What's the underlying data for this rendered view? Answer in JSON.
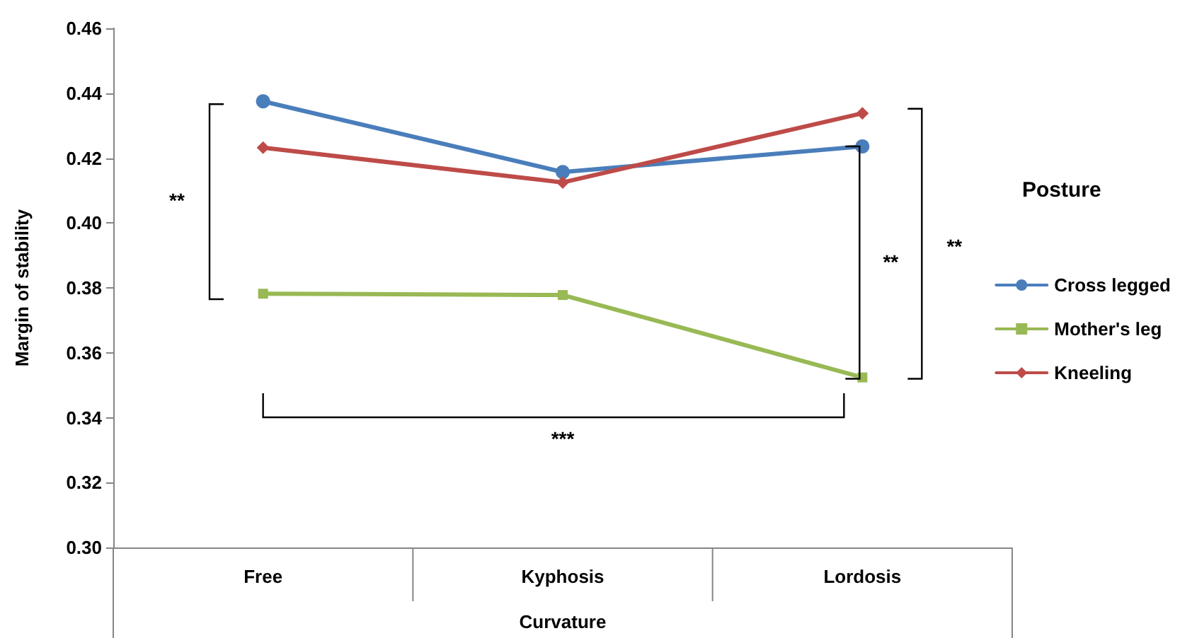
{
  "chart_data": {
    "type": "line",
    "xlabel": "Curvature",
    "ylabel": "Margin of stability",
    "legend_title": "Posture",
    "legend": "right",
    "grid": false,
    "categories": [
      "Free",
      "Kyphosis",
      "Lordosis"
    ],
    "ylim": [
      0.3,
      0.46
    ],
    "yticks": [
      {
        "value": 0.3,
        "label": "0.30"
      },
      0.32,
      0.34,
      0.36,
      0.38,
      {
        "value": 0.4,
        "label": "0.40"
      },
      0.42,
      0.44,
      0.46
    ],
    "series": [
      {
        "name": "Cross legged",
        "color": "#4a7ebb",
        "marker": "circle",
        "values": [
          0.4375,
          0.4157,
          0.4236
        ]
      },
      {
        "name": "Mother's leg",
        "color": "#98b954",
        "marker": "square",
        "values": [
          0.3782,
          0.3778,
          0.3524
        ]
      },
      {
        "name": "Kneeling",
        "color": "#be4b48",
        "marker": "diamond",
        "values": [
          0.4232,
          0.4125,
          0.4338
        ]
      }
    ],
    "annotations": [
      "**",
      "***",
      "**",
      "**"
    ]
  }
}
